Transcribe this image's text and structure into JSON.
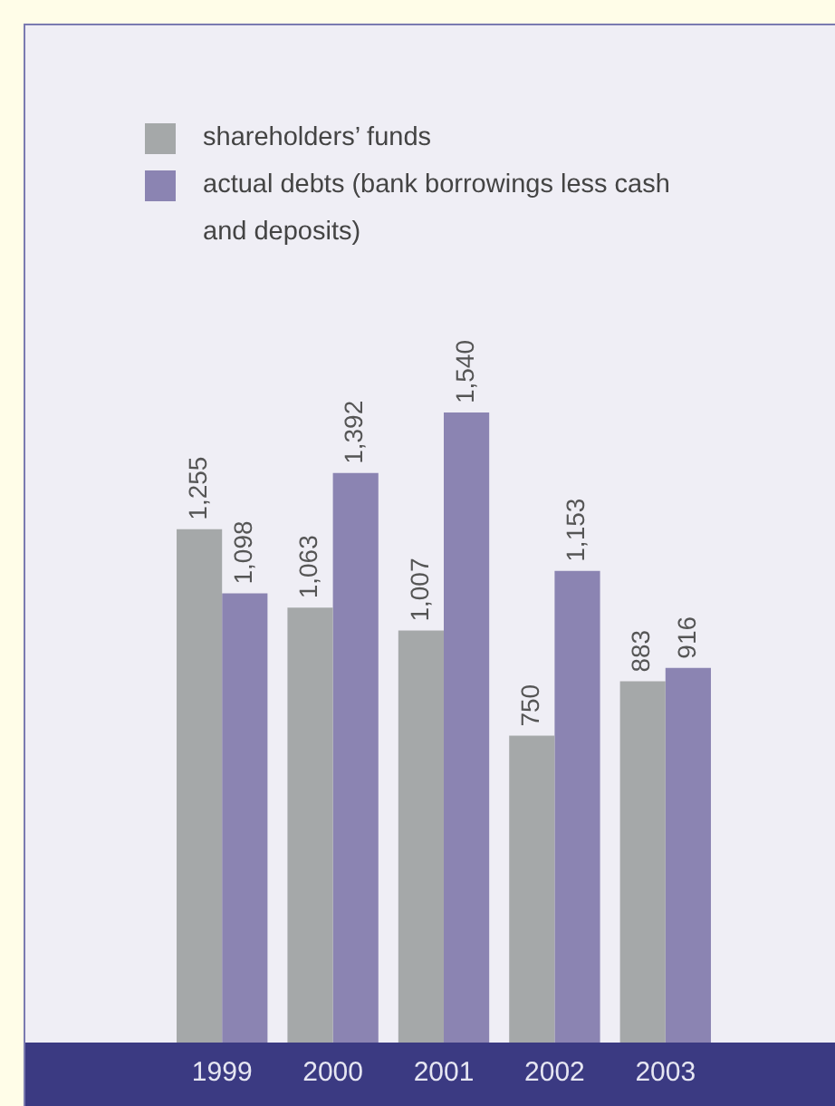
{
  "chart_data": {
    "type": "bar",
    "categories": [
      "1999",
      "2000",
      "2001",
      "2002",
      "2003"
    ],
    "series": [
      {
        "name": "shareholders’ funds",
        "color": "#a5a8a9",
        "values": [
          1255,
          1063,
          1007,
          750,
          883
        ],
        "value_labels": [
          "1,255",
          "1,063",
          "1,007",
          "750",
          "883"
        ]
      },
      {
        "name": "actual debts (bank borrowings less cash and deposits)",
        "color": "#8b84b2",
        "values": [
          1098,
          1392,
          1540,
          1153,
          916
        ],
        "value_labels": [
          "1,098",
          "1,392",
          "1,540",
          "1,153",
          "916"
        ]
      }
    ],
    "legend": "top left",
    "grid": false
  }
}
